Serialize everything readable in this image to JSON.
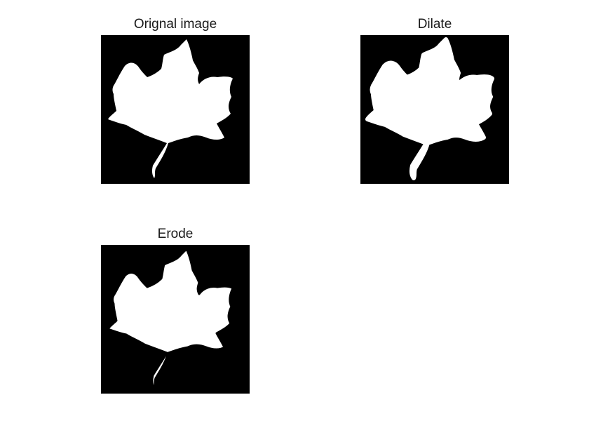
{
  "figure": {
    "panels": [
      {
        "title": "Orignal image"
      },
      {
        "title": "Dilate"
      },
      {
        "title": "Erode"
      }
    ]
  },
  "colors": {
    "background": "#ffffff",
    "image_background": "#000000",
    "leaf": "#ffffff",
    "title_text": "#1a1a1a"
  }
}
